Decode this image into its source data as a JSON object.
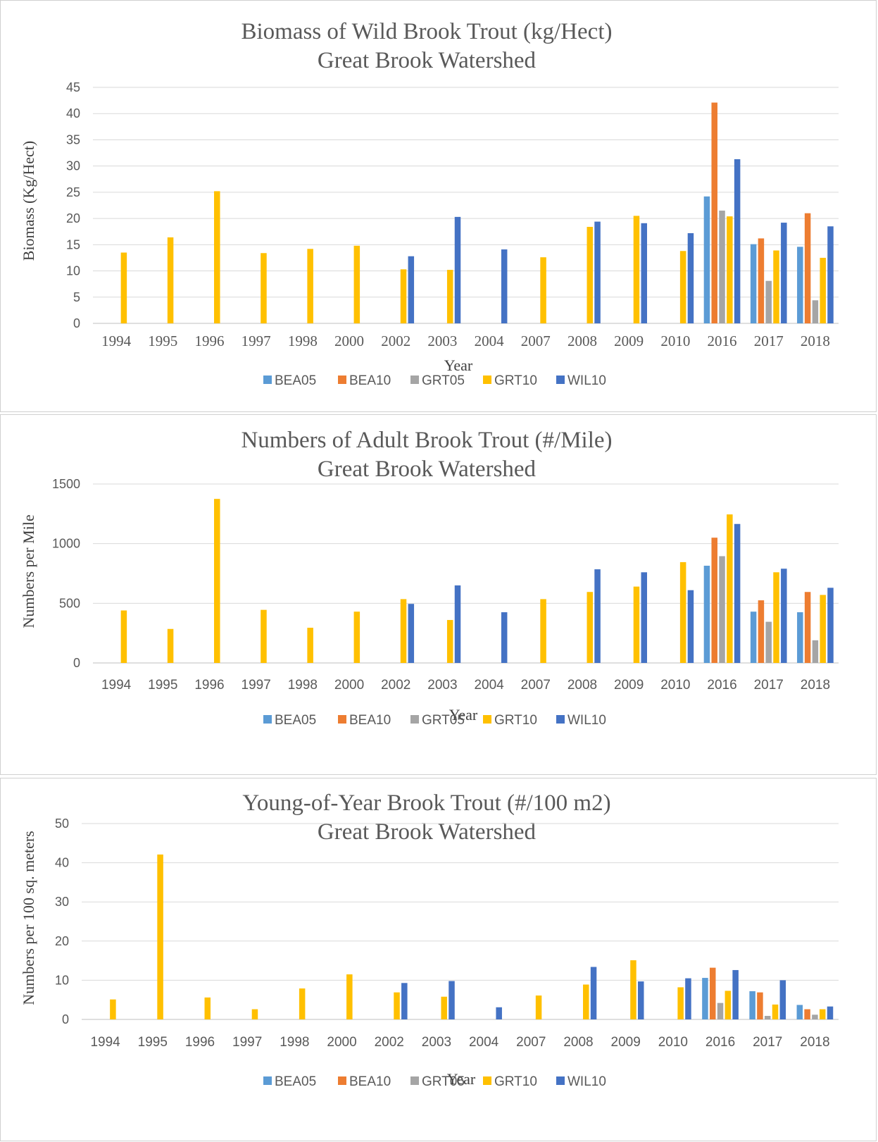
{
  "colors": {
    "BEA05": "#5b9bd5",
    "BEA10": "#ed7d31",
    "GRT05": "#a5a5a5",
    "GRT10": "#ffc000",
    "WIL10": "#4472c4"
  },
  "chart_data": [
    {
      "type": "bar",
      "title": "Biomass of Wild Brook Trout (kg/Hect)",
      "subtitle": "Great Brook Watershed",
      "xlabel": "Year",
      "ylabel": "Biomass (Kg/Hect)",
      "ylim": [
        0,
        45
      ],
      "yticks": [
        0,
        5,
        10,
        15,
        20,
        25,
        30,
        35,
        40,
        45
      ],
      "categories": [
        "1994",
        "1995",
        "1996",
        "1997",
        "1998",
        "2000",
        "2002",
        "2003",
        "2004",
        "2007",
        "2008",
        "2009",
        "2010",
        "2016",
        "2017",
        "2018"
      ],
      "grid": true,
      "legend": "bottom",
      "series": [
        {
          "name": "BEA05",
          "values": [
            null,
            null,
            null,
            null,
            null,
            null,
            null,
            null,
            null,
            null,
            null,
            null,
            null,
            24.2,
            15.1,
            14.6
          ]
        },
        {
          "name": "BEA10",
          "values": [
            null,
            null,
            null,
            null,
            null,
            null,
            null,
            null,
            null,
            null,
            null,
            null,
            null,
            42.1,
            16.2,
            21.0
          ]
        },
        {
          "name": "GRT05",
          "values": [
            null,
            null,
            null,
            null,
            null,
            null,
            null,
            null,
            null,
            null,
            null,
            null,
            null,
            21.5,
            8.1,
            4.4
          ]
        },
        {
          "name": "GRT10",
          "values": [
            13.5,
            16.4,
            25.2,
            13.4,
            14.2,
            14.8,
            10.3,
            10.2,
            null,
            12.6,
            18.4,
            20.5,
            13.8,
            20.4,
            13.9,
            12.5
          ]
        },
        {
          "name": "WIL10",
          "values": [
            null,
            null,
            null,
            null,
            null,
            null,
            12.8,
            20.3,
            14.1,
            null,
            19.4,
            19.1,
            17.2,
            31.3,
            19.2,
            18.5
          ]
        }
      ]
    },
    {
      "type": "bar",
      "title": "Numbers of Adult Brook Trout (#/Mile)",
      "subtitle": "Great Brook Watershed",
      "xlabel": "Year",
      "ylabel": "Numbers per Mile",
      "ylim": [
        0,
        1500
      ],
      "yticks": [
        0,
        500,
        1000,
        1500
      ],
      "categories": [
        "1994",
        "1995",
        "1996",
        "1997",
        "1998",
        "2000",
        "2002",
        "2003",
        "2004",
        "2007",
        "2008",
        "2009",
        "2010",
        "2016",
        "2017",
        "2018"
      ],
      "grid": true,
      "legend": "bottom",
      "series": [
        {
          "name": "BEA05",
          "values": [
            null,
            null,
            null,
            null,
            null,
            null,
            null,
            null,
            null,
            null,
            null,
            null,
            null,
            815,
            430,
            425
          ]
        },
        {
          "name": "BEA10",
          "values": [
            null,
            null,
            null,
            null,
            null,
            null,
            null,
            null,
            null,
            null,
            null,
            null,
            null,
            1050,
            525,
            595
          ]
        },
        {
          "name": "GRT05",
          "values": [
            null,
            null,
            null,
            null,
            null,
            null,
            null,
            null,
            null,
            null,
            null,
            null,
            null,
            895,
            345,
            190
          ]
        },
        {
          "name": "GRT10",
          "values": [
            440,
            285,
            1375,
            445,
            295,
            430,
            535,
            360,
            null,
            535,
            595,
            640,
            845,
            1245,
            760,
            570
          ]
        },
        {
          "name": "WIL10",
          "values": [
            null,
            null,
            null,
            null,
            null,
            null,
            495,
            650,
            425,
            null,
            785,
            760,
            610,
            1165,
            790,
            630
          ]
        }
      ]
    },
    {
      "type": "bar",
      "title": "Young-of-Year Brook Trout (#/100 m2)",
      "subtitle": "Great Brook Watershed",
      "xlabel": "Year",
      "ylabel": "Numbers per 100 sq. meters",
      "ylim": [
        0,
        50
      ],
      "yticks": [
        0,
        10,
        20,
        30,
        40,
        50
      ],
      "categories": [
        "1994",
        "1995",
        "1996",
        "1997",
        "1998",
        "2000",
        "2002",
        "2003",
        "2004",
        "2007",
        "2008",
        "2009",
        "2010",
        "2016",
        "2017",
        "2018"
      ],
      "grid": true,
      "legend": "bottom",
      "series": [
        {
          "name": "BEA05",
          "values": [
            null,
            null,
            null,
            null,
            null,
            null,
            null,
            null,
            null,
            null,
            null,
            null,
            null,
            10.6,
            7.2,
            3.7
          ]
        },
        {
          "name": "BEA10",
          "values": [
            null,
            null,
            null,
            null,
            null,
            null,
            null,
            null,
            null,
            null,
            null,
            null,
            null,
            13.2,
            6.9,
            2.6
          ]
        },
        {
          "name": "GRT05",
          "values": [
            null,
            null,
            null,
            null,
            null,
            null,
            null,
            null,
            null,
            null,
            null,
            null,
            null,
            4.2,
            0.9,
            1.2
          ]
        },
        {
          "name": "GRT10",
          "values": [
            5.1,
            42.1,
            5.6,
            2.6,
            7.9,
            11.5,
            6.9,
            5.8,
            null,
            6.1,
            8.9,
            15.1,
            8.2,
            7.3,
            3.8,
            2.6
          ]
        },
        {
          "name": "WIL10",
          "values": [
            null,
            null,
            null,
            null,
            null,
            null,
            9.3,
            9.8,
            3.1,
            null,
            13.4,
            9.7,
            10.5,
            12.6,
            10.0,
            3.3
          ]
        }
      ]
    }
  ]
}
